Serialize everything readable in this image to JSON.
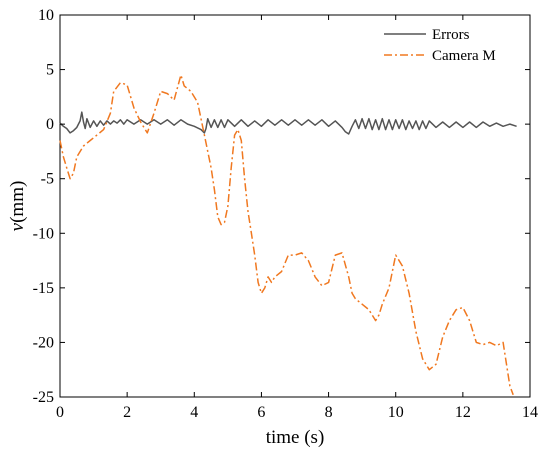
{
  "chart_data": {
    "type": "line",
    "title": "",
    "xlabel": "time (s)",
    "ylabel_var": "v",
    "ylabel_unit": "(mm)",
    "xlim": [
      0,
      14
    ],
    "ylim": [
      -25,
      10
    ],
    "x_ticks": [
      0,
      2,
      4,
      6,
      8,
      10,
      12,
      14
    ],
    "y_ticks": [
      10,
      5,
      0,
      -5,
      -10,
      -15,
      -20,
      -25
    ],
    "x_tick_labels": [
      "0",
      "2",
      "4",
      "6",
      "8",
      "10",
      "12",
      "14"
    ],
    "y_tick_labels": [
      "10",
      "5",
      "0",
      "-5",
      "-10",
      "-15",
      "-20",
      "-25"
    ],
    "grid": false,
    "legend_position": "top-right",
    "series": [
      {
        "name": "Errors",
        "color": "#555555",
        "style": "solid",
        "x": [
          0,
          0.1,
          0.2,
          0.3,
          0.4,
          0.5,
          0.6,
          0.65,
          0.7,
          0.75,
          0.8,
          0.9,
          1.0,
          1.1,
          1.2,
          1.3,
          1.4,
          1.5,
          1.6,
          1.7,
          1.8,
          1.9,
          2.0,
          2.2,
          2.4,
          2.6,
          2.8,
          3.0,
          3.2,
          3.4,
          3.6,
          3.8,
          4.0,
          4.2,
          4.3,
          4.35,
          4.4,
          4.5,
          4.6,
          4.7,
          4.8,
          4.9,
          5.0,
          5.2,
          5.4,
          5.6,
          5.8,
          6.0,
          6.2,
          6.4,
          6.6,
          6.8,
          7.0,
          7.2,
          7.4,
          7.6,
          7.8,
          8.0,
          8.2,
          8.4,
          8.5,
          8.6,
          8.7,
          8.8,
          8.9,
          9.0,
          9.1,
          9.2,
          9.3,
          9.4,
          9.5,
          9.6,
          9.7,
          9.8,
          9.9,
          10.0,
          10.1,
          10.2,
          10.3,
          10.4,
          10.5,
          10.6,
          10.7,
          10.8,
          10.9,
          11.0,
          11.2,
          11.4,
          11.6,
          11.8,
          12.0,
          12.2,
          12.4,
          12.6,
          12.8,
          13.0,
          13.2,
          13.4,
          13.6
        ],
        "y": [
          0.1,
          -0.2,
          -0.4,
          -0.8,
          -0.6,
          -0.3,
          0.3,
          1.1,
          0.2,
          -0.4,
          0.5,
          -0.3,
          0.3,
          -0.2,
          0.3,
          -0.1,
          0.3,
          0.0,
          0.3,
          0.1,
          0.4,
          0.0,
          0.4,
          0.0,
          0.4,
          0.0,
          0.4,
          0.0,
          0.4,
          -0.1,
          0.4,
          0.0,
          -0.2,
          -0.5,
          -0.8,
          -0.4,
          0.5,
          -0.3,
          0.4,
          -0.3,
          0.4,
          -0.3,
          0.4,
          -0.2,
          0.4,
          -0.2,
          0.3,
          -0.2,
          0.4,
          -0.1,
          0.4,
          -0.1,
          0.4,
          -0.1,
          0.4,
          -0.1,
          0.4,
          -0.2,
          0.3,
          -0.3,
          -0.7,
          -0.9,
          -0.2,
          0.4,
          -0.4,
          0.5,
          -0.4,
          0.5,
          -0.5,
          0.4,
          -0.5,
          0.5,
          -0.5,
          0.4,
          -0.5,
          0.4,
          -0.4,
          0.4,
          -0.5,
          0.3,
          -0.4,
          0.3,
          -0.5,
          0.3,
          -0.4,
          0.3,
          -0.3,
          0.2,
          -0.3,
          0.2,
          -0.3,
          0.2,
          -0.3,
          0.2,
          -0.2,
          0.1,
          -0.2,
          0.0,
          -0.2
        ]
      },
      {
        "name": "Camera M",
        "color": "#F07820",
        "style": "dashdot",
        "x": [
          0,
          0.1,
          0.2,
          0.3,
          0.4,
          0.5,
          0.7,
          0.9,
          1.1,
          1.3,
          1.5,
          1.6,
          1.8,
          2.0,
          2.2,
          2.4,
          2.6,
          2.8,
          3.0,
          3.2,
          3.4,
          3.6,
          3.7,
          3.9,
          4.1,
          4.3,
          4.5,
          4.6,
          4.7,
          4.8,
          4.9,
          5.0,
          5.1,
          5.2,
          5.3,
          5.4,
          5.5,
          5.6,
          5.7,
          5.8,
          5.9,
          6.0,
          6.1,
          6.2,
          6.3,
          6.4,
          6.6,
          6.8,
          7.0,
          7.2,
          7.4,
          7.6,
          7.8,
          8.0,
          8.2,
          8.4,
          8.6,
          8.7,
          8.8,
          9.0,
          9.2,
          9.4,
          9.5,
          9.6,
          9.8,
          10.0,
          10.2,
          10.4,
          10.6,
          10.8,
          11.0,
          11.2,
          11.4,
          11.6,
          11.8,
          12.0,
          12.2,
          12.4,
          12.6,
          12.8,
          13.0,
          13.2,
          13.3,
          13.4,
          13.5
        ],
        "y": [
          -1.5,
          -3.0,
          -4.0,
          -5.0,
          -4.5,
          -3.0,
          -2.0,
          -1.5,
          -1.0,
          -0.5,
          1.0,
          3.0,
          3.8,
          3.6,
          1.5,
          0.2,
          -0.8,
          1.0,
          3.0,
          2.8,
          2.2,
          4.5,
          3.5,
          3.0,
          2.0,
          -1.0,
          -4.0,
          -6.0,
          -8.5,
          -9.2,
          -9.0,
          -7.5,
          -4.0,
          -1.0,
          -0.5,
          -1.5,
          -5.0,
          -8.0,
          -10.0,
          -12.0,
          -14.5,
          -15.5,
          -15.0,
          -14.0,
          -14.5,
          -14.0,
          -13.5,
          -12.0,
          -12.0,
          -11.8,
          -12.5,
          -14.0,
          -14.8,
          -14.5,
          -12.0,
          -11.8,
          -14.0,
          -15.5,
          -16.0,
          -16.5,
          -17.0,
          -18.0,
          -17.5,
          -16.5,
          -15.0,
          -12.0,
          -13.0,
          -15.5,
          -19.0,
          -21.5,
          -22.5,
          -22.0,
          -19.5,
          -18.0,
          -17.0,
          -16.8,
          -18.0,
          -20.0,
          -20.2,
          -20.0,
          -20.3,
          -20.0,
          -22.0,
          -24.0,
          -24.8
        ]
      }
    ]
  }
}
